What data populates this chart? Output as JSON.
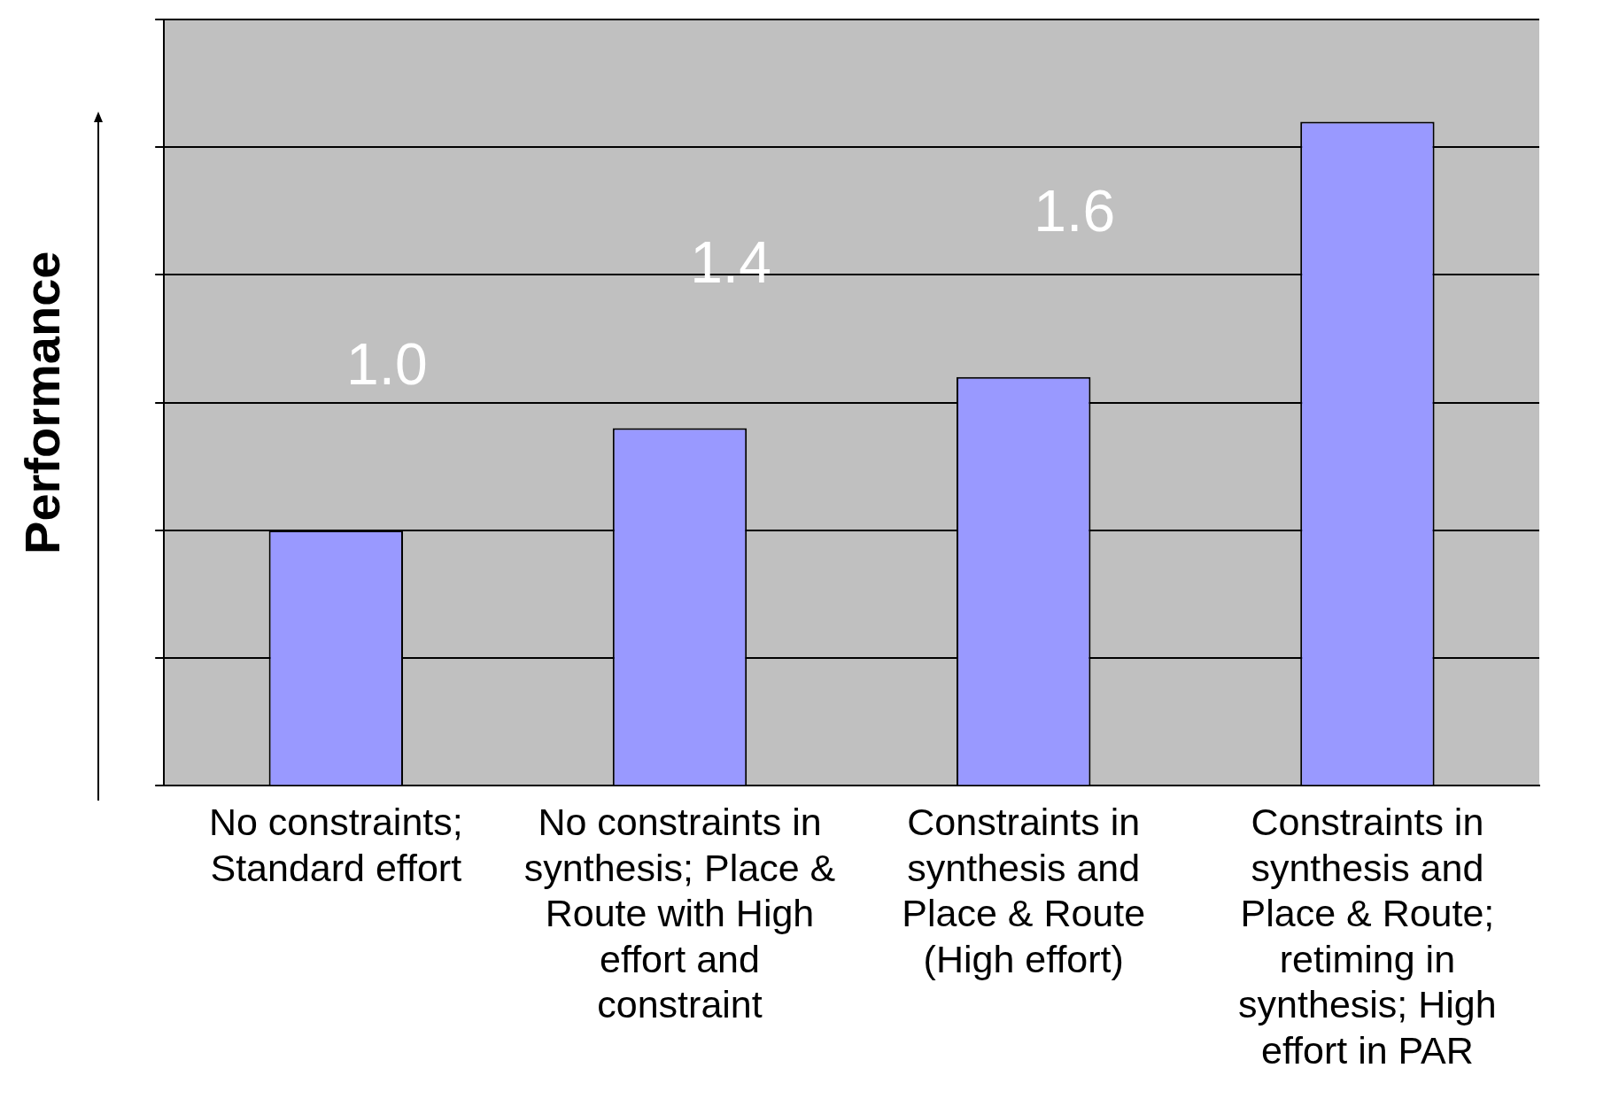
{
  "chart_data": {
    "type": "bar",
    "ylabel": "Performance",
    "categories": [
      "No constraints; Standard effort",
      "No constraints in synthesis; Place & Route with High effort and constraint",
      "Constraints in synthesis and Place & Route (High effort)",
      "Constraints in synthesis and Place & Route; retiming in synthesis; High effort in PAR"
    ],
    "values": [
      1.0,
      1.4,
      1.6,
      2.6
    ],
    "value_labels": [
      "1.0",
      "1.4",
      "1.6",
      null
    ],
    "color": "#9999ff",
    "tick_labels": "x",
    "grid": "y",
    "legend": false
  }
}
